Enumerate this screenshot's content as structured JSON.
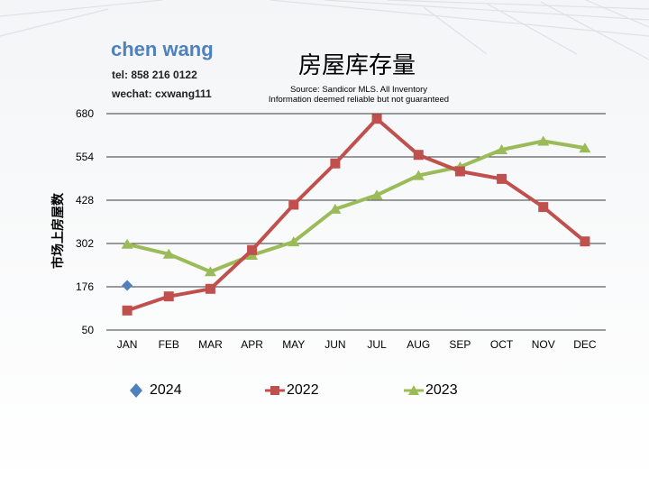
{
  "header": {
    "name": "chen wang",
    "tel": "tel: 858 216 0122",
    "wechat": "wechat: cxwang111"
  },
  "colors": {
    "accent": "#4f81bd",
    "series_2024": "#4f81bd",
    "series_2022": "#c0504d",
    "series_2023": "#9bbb59",
    "grid": "#3a3a3a"
  },
  "chart_data": {
    "type": "line",
    "title": "房屋库存量",
    "subtitle_lines": [
      "Source: Sandicor MLS. All Inventory",
      "Information deemed reliable but not guaranteed"
    ],
    "xlabel": "",
    "ylabel": "市场上房屋数",
    "categories": [
      "JAN",
      "FEB",
      "MAR",
      "APR",
      "MAY",
      "JUN",
      "JUL",
      "AUG",
      "SEP",
      "OCT",
      "NOV",
      "DEC"
    ],
    "yticks": [
      "680",
      "554",
      "428",
      "302",
      "176",
      "50"
    ],
    "ylim": [
      50,
      680
    ],
    "grid": true,
    "legend_position": "bottom",
    "series": [
      {
        "name": "2024",
        "marker": "diamond",
        "values": [
          180,
          null,
          null,
          null,
          null,
          null,
          null,
          null,
          null,
          null,
          null,
          null
        ]
      },
      {
        "name": "2022",
        "marker": "square",
        "values": [
          107,
          148,
          170,
          283,
          415,
          535,
          665,
          560,
          512,
          490,
          408,
          308
        ]
      },
      {
        "name": "2023",
        "marker": "triangle",
        "values": [
          300,
          271,
          220,
          268,
          307,
          402,
          443,
          500,
          525,
          575,
          600,
          580
        ]
      }
    ]
  }
}
